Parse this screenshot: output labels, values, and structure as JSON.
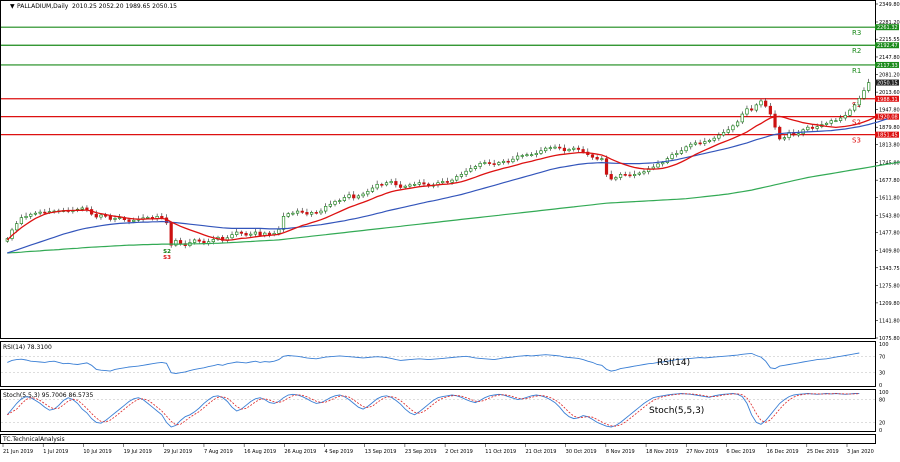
{
  "header": {
    "symbol": "PALLADIUM,Daily",
    "ohlc": "2010.25 2052.20 1989.65 2050.15"
  },
  "colors": {
    "up": "#0b7a0b",
    "down": "#cc1111",
    "resistance": "#1a8a1a",
    "support": "#dd1111",
    "ma_fast": "#dd1111",
    "ma_mid": "#3355bb",
    "ma_slow": "#33aa55",
    "rsi": "#3a7fd5",
    "stoch_main": "#3a7fd5",
    "stoch_signal": "#dd2222",
    "price_tag_bg": "#222222"
  },
  "chart_data": [
    {
      "type": "candlestick",
      "symbol": "PALLADIUM",
      "timeframe": "Daily",
      "x_labels": [
        "21 Jun 2019",
        "1 Jul 2019",
        "10 Jul 2019",
        "19 Jul 2019",
        "29 Jul 2019",
        "7 Aug 2019",
        "16 Aug 2019",
        "26 Aug 2019",
        "4 Sep 2019",
        "13 Sep 2019",
        "23 Sep 2019",
        "2 Oct 2019",
        "11 Oct 2019",
        "21 Oct 2019",
        "30 Oct 2019",
        "8 Nov 2019",
        "18 Nov 2019",
        "27 Nov 2019",
        "6 Dec 2019",
        "16 Dec 2019",
        "25 Dec 2019",
        "3 Jan 2020"
      ],
      "y_ticks": [
        "2349.80",
        "2281.20",
        "2215.55",
        "2147.80",
        "2081.20",
        "2013.60",
        "1947.80",
        "1879.80",
        "1813.80",
        "1745.80",
        "1677.80",
        "1611.80",
        "1543.80",
        "1477.80",
        "1409.80",
        "1343.75",
        "1275.80",
        "1209.80",
        "1141.80",
        "1075.80"
      ],
      "ylim": [
        1075.8,
        2349.8
      ],
      "levels": [
        {
          "name": "R3",
          "kind": "resistance",
          "value": 2261.32,
          "tag": "2261.32"
        },
        {
          "name": "R2",
          "kind": "resistance",
          "value": 2192.47,
          "tag": "2192.47"
        },
        {
          "name": "R1",
          "kind": "resistance",
          "value": 2117.33,
          "tag": "2117.33"
        },
        {
          "name": "S1",
          "kind": "support",
          "value": 1988.31,
          "tag": "1988.31"
        },
        {
          "name": "S2",
          "kind": "support",
          "value": 1920.08,
          "tag": "1920.08"
        },
        {
          "name": "S3",
          "kind": "support",
          "value": 1851.45,
          "tag": "1851.45"
        }
      ],
      "last_price": "2050.15",
      "pivot_marks": [
        "S2",
        "S3"
      ],
      "closes": [
        1455,
        1488,
        1512,
        1535,
        1540,
        1548,
        1552,
        1556,
        1555,
        1558,
        1560,
        1561,
        1562,
        1560,
        1562,
        1567,
        1572,
        1566,
        1548,
        1537,
        1545,
        1540,
        1528,
        1532,
        1535,
        1527,
        1520,
        1525,
        1530,
        1534,
        1536,
        1532,
        1540,
        1534,
        1515,
        1430,
        1448,
        1436,
        1428,
        1440,
        1450,
        1445,
        1436,
        1443,
        1452,
        1460,
        1448,
        1458,
        1470,
        1480,
        1475,
        1468,
        1472,
        1480,
        1468,
        1476,
        1470,
        1475,
        1490,
        1540,
        1550,
        1552,
        1560,
        1555,
        1548,
        1555,
        1553,
        1560,
        1578,
        1586,
        1597,
        1600,
        1612,
        1622,
        1610,
        1618,
        1625,
        1635,
        1648,
        1662,
        1660,
        1668,
        1673,
        1660,
        1650,
        1655,
        1660,
        1662,
        1668,
        1663,
        1655,
        1660,
        1668,
        1673,
        1670,
        1678,
        1692,
        1700,
        1712,
        1722,
        1730,
        1742,
        1745,
        1741,
        1738,
        1745,
        1750,
        1748,
        1758,
        1770,
        1772,
        1775,
        1775,
        1780,
        1790,
        1800,
        1802,
        1804,
        1800,
        1790,
        1795,
        1800,
        1795,
        1785,
        1775,
        1765,
        1758,
        1760,
        1700,
        1682,
        1688,
        1700,
        1698,
        1695,
        1700,
        1705,
        1710,
        1722,
        1728,
        1740,
        1745,
        1760,
        1775,
        1780,
        1790,
        1805,
        1815,
        1820,
        1818,
        1825,
        1830,
        1838,
        1850,
        1860,
        1870,
        1885,
        1900,
        1930,
        1950,
        1945,
        1965,
        1980,
        1960,
        1930,
        1880,
        1835,
        1840,
        1860,
        1850,
        1855,
        1870,
        1880,
        1875,
        1882,
        1890,
        1895,
        1905,
        1905,
        1915,
        1925,
        1945,
        1965,
        1990,
        2020,
        2050
      ],
      "ma_fast": [
        1450,
        1467,
        1482,
        1497,
        1509,
        1521,
        1532,
        1540,
        1548,
        1553,
        1556,
        1559,
        1561,
        1562,
        1562,
        1563,
        1563,
        1564,
        1560,
        1554,
        1550,
        1547,
        1543,
        1540,
        1538,
        1535,
        1532,
        1530,
        1529,
        1529,
        1530,
        1530,
        1531,
        1532,
        1529,
        1518,
        1510,
        1502,
        1495,
        1488,
        1482,
        1476,
        1469,
        1463,
        1458,
        1454,
        1450,
        1449,
        1450,
        1453,
        1456,
        1457,
        1459,
        1462,
        1464,
        1466,
        1467,
        1469,
        1471,
        1477,
        1484,
        1491,
        1498,
        1505,
        1510,
        1516,
        1521,
        1527,
        1534,
        1542,
        1550,
        1558,
        1566,
        1574,
        1580,
        1587,
        1593,
        1600,
        1607,
        1615,
        1621,
        1628,
        1634,
        1638,
        1641,
        1644,
        1647,
        1650,
        1653,
        1655,
        1656,
        1658,
        1660,
        1662,
        1663,
        1665,
        1668,
        1672,
        1677,
        1683,
        1689,
        1696,
        1702,
        1708,
        1713,
        1718,
        1723,
        1727,
        1732,
        1737,
        1742,
        1746,
        1750,
        1755,
        1759,
        1764,
        1768,
        1772,
        1775,
        1777,
        1779,
        1781,
        1783,
        1783,
        1782,
        1780,
        1777,
        1774,
        1767,
        1758,
        1750,
        1743,
        1737,
        1731,
        1726,
        1723,
        1721,
        1720,
        1720,
        1721,
        1723,
        1727,
        1733,
        1739,
        1747,
        1756,
        1766,
        1776,
        1784,
        1792,
        1800,
        1808,
        1816,
        1823,
        1830,
        1837,
        1845,
        1853,
        1862,
        1873,
        1885,
        1894,
        1905,
        1915,
        1920,
        1921,
        1917,
        1911,
        1906,
        1902,
        1897,
        1894,
        1891,
        1889,
        1886,
        1883,
        1881,
        1879,
        1881,
        1883,
        1886,
        1889,
        1894,
        1900,
        1907,
        1915,
        1924
      ],
      "ma_mid": [
        1400,
        1406,
        1412,
        1418,
        1424,
        1430,
        1436,
        1442,
        1448,
        1454,
        1460,
        1466,
        1472,
        1477,
        1482,
        1487,
        1491,
        1495,
        1498,
        1501,
        1504,
        1507,
        1509,
        1511,
        1513,
        1514,
        1515,
        1516,
        1517,
        1518,
        1518,
        1519,
        1519,
        1520,
        1519,
        1517,
        1516,
        1514,
        1512,
        1510,
        1508,
        1506,
        1504,
        1502,
        1500,
        1498,
        1496,
        1495,
        1494,
        1494,
        1494,
        1494,
        1494,
        1494,
        1494,
        1493,
        1492,
        1492,
        1492,
        1493,
        1494,
        1496,
        1498,
        1500,
        1502,
        1504,
        1506,
        1508,
        1511,
        1514,
        1517,
        1520,
        1523,
        1527,
        1530,
        1534,
        1538,
        1542,
        1546,
        1551,
        1555,
        1560,
        1564,
        1568,
        1572,
        1576,
        1580,
        1584,
        1588,
        1592,
        1596,
        1599,
        1603,
        1607,
        1611,
        1615,
        1619,
        1623,
        1628,
        1633,
        1638,
        1643,
        1648,
        1653,
        1658,
        1663,
        1668,
        1673,
        1678,
        1683,
        1688,
        1693,
        1698,
        1703,
        1708,
        1713,
        1718,
        1722,
        1726,
        1729,
        1732,
        1735,
        1738,
        1740,
        1742,
        1743,
        1744,
        1745,
        1744,
        1743,
        1742,
        1742,
        1741,
        1741,
        1741,
        1741,
        1742,
        1743,
        1744,
        1746,
        1748,
        1750,
        1753,
        1756,
        1760,
        1764,
        1768,
        1772,
        1776,
        1780,
        1784,
        1788,
        1792,
        1796,
        1800,
        1805,
        1810,
        1815,
        1820,
        1826,
        1832,
        1837,
        1842,
        1848,
        1852,
        1855,
        1857,
        1858,
        1859,
        1860,
        1861,
        1862,
        1863,
        1864,
        1865,
        1866,
        1867,
        1869,
        1871,
        1873,
        1876,
        1879,
        1882,
        1886,
        1890,
        1895,
        1900,
        1906,
        1912
      ],
      "ma_slow": [
        1400,
        1401,
        1402,
        1403,
        1405,
        1406,
        1407,
        1408,
        1410,
        1411,
        1412,
        1413,
        1415,
        1416,
        1417,
        1418,
        1420,
        1421,
        1422,
        1423,
        1424,
        1425,
        1426,
        1427,
        1428,
        1429,
        1430,
        1430,
        1431,
        1432,
        1432,
        1433,
        1433,
        1434,
        1434,
        1434,
        1434,
        1434,
        1434,
        1435,
        1435,
        1435,
        1436,
        1436,
        1437,
        1437,
        1438,
        1439,
        1440,
        1441,
        1442,
        1443,
        1444,
        1445,
        1446,
        1447,
        1448,
        1449,
        1450,
        1452,
        1454,
        1456,
        1458,
        1460,
        1462,
        1464,
        1466,
        1468,
        1470,
        1472,
        1474,
        1476,
        1478,
        1480,
        1482,
        1484,
        1486,
        1488,
        1490,
        1492,
        1494,
        1496,
        1498,
        1500,
        1502,
        1504,
        1506,
        1508,
        1510,
        1512,
        1514,
        1516,
        1518,
        1520,
        1522,
        1524,
        1526,
        1528,
        1530,
        1532,
        1534,
        1536,
        1538,
        1540,
        1542,
        1544,
        1546,
        1548,
        1550,
        1552,
        1554,
        1556,
        1558,
        1560,
        1562,
        1564,
        1566,
        1568,
        1570,
        1572,
        1574,
        1576,
        1578,
        1580,
        1582,
        1584,
        1586,
        1588,
        1590,
        1591,
        1592,
        1593,
        1594,
        1595,
        1596,
        1597,
        1598,
        1599,
        1600,
        1601,
        1602,
        1603,
        1604,
        1605,
        1606,
        1607,
        1609,
        1611,
        1613,
        1615,
        1617,
        1619,
        1621,
        1623,
        1625,
        1628,
        1631,
        1634,
        1637,
        1640,
        1644,
        1648,
        1652,
        1656,
        1660,
        1664,
        1668,
        1672,
        1676,
        1680,
        1684,
        1688,
        1691,
        1694,
        1697,
        1700,
        1703,
        1706,
        1709,
        1712,
        1715,
        1718,
        1721,
        1724,
        1727,
        1730,
        1733,
        1736,
        1739,
        1742,
        1745,
        1748,
        1751,
        1755
      ]
    },
    {
      "type": "line",
      "name": "RSI(14)",
      "header": "RSI(14) 78.3100",
      "label": "RSI(14)",
      "y_ticks": [
        "100",
        "70",
        "30",
        "0"
      ],
      "ylim": [
        0,
        100
      ],
      "levels": [
        70,
        30
      ],
      "values": [
        55,
        60,
        62,
        63,
        61,
        58,
        57,
        56,
        55,
        57,
        58,
        55,
        52,
        53,
        51,
        50,
        52,
        54,
        48,
        38,
        36,
        35,
        34,
        38,
        40,
        42,
        44,
        45,
        46,
        48,
        50,
        52,
        54,
        55,
        53,
        30,
        28,
        30,
        32,
        35,
        38,
        40,
        42,
        45,
        47,
        50,
        48,
        52,
        54,
        56,
        55,
        54,
        56,
        58,
        55,
        57,
        56,
        58,
        62,
        70,
        72,
        71,
        70,
        68,
        66,
        65,
        64,
        66,
        68,
        69,
        70,
        71,
        70,
        69,
        68,
        67,
        66,
        67,
        68,
        69,
        68,
        67,
        65,
        62,
        60,
        61,
        62,
        63,
        64,
        63,
        62,
        63,
        64,
        65,
        66,
        67,
        68,
        69,
        70,
        68,
        66,
        65,
        64,
        63,
        62,
        64,
        66,
        67,
        68,
        70,
        71,
        72,
        71,
        72,
        73,
        74,
        73,
        72,
        71,
        68,
        67,
        66,
        65,
        62,
        58,
        55,
        50,
        48,
        38,
        34,
        36,
        40,
        42,
        44,
        46,
        48,
        50,
        52,
        53,
        55,
        56,
        58,
        60,
        62,
        63,
        64,
        65,
        66,
        67,
        66,
        67,
        68,
        69,
        70,
        71,
        72,
        73,
        75,
        76,
        77,
        72,
        68,
        58,
        42,
        40,
        46,
        48,
        50,
        52,
        54,
        56,
        58,
        60,
        62,
        63,
        64,
        66,
        68,
        70,
        72,
        74,
        76,
        78
      ]
    },
    {
      "type": "line",
      "name": "Stoch(5,5,3)",
      "header": "Stoch(5,5,3) 95.7006 86.5735",
      "label": "Stoch(5,5,3)",
      "y_ticks": [
        "100",
        "80",
        "20",
        "0"
      ],
      "ylim": [
        0,
        100
      ],
      "levels": [
        80,
        20
      ],
      "main": [
        40,
        55,
        70,
        82,
        88,
        85,
        78,
        70,
        60,
        52,
        55,
        65,
        78,
        85,
        80,
        70,
        55,
        45,
        30,
        20,
        18,
        25,
        35,
        45,
        55,
        65,
        75,
        82,
        85,
        80,
        70,
        60,
        50,
        40,
        20,
        8,
        12,
        25,
        35,
        40,
        48,
        58,
        70,
        80,
        88,
        90,
        85,
        75,
        60,
        50,
        55,
        65,
        75,
        82,
        85,
        80,
        72,
        70,
        75,
        85,
        92,
        94,
        92,
        88,
        82,
        75,
        70,
        72,
        78,
        85,
        90,
        92,
        88,
        80,
        70,
        60,
        55,
        62,
        72,
        82,
        88,
        90,
        86,
        78,
        68,
        55,
        45,
        40,
        48,
        58,
        68,
        78,
        85,
        88,
        90,
        92,
        90,
        86,
        80,
        75,
        72,
        78,
        85,
        90,
        92,
        94,
        92,
        88,
        84,
        80,
        82,
        86,
        90,
        92,
        90,
        86,
        80,
        72,
        60,
        45,
        35,
        30,
        32,
        38,
        35,
        28,
        20,
        15,
        10,
        8,
        12,
        20,
        30,
        40,
        50,
        60,
        70,
        78,
        85,
        88,
        90,
        92,
        94,
        95,
        96,
        95,
        94,
        92,
        90,
        88,
        86,
        90,
        92,
        94,
        95,
        96,
        94,
        88,
        70,
        40,
        20,
        15,
        25,
        40,
        55,
        70,
        80,
        88,
        92,
        94,
        95,
        96,
        95,
        94,
        95,
        96,
        95,
        96,
        95,
        94,
        95,
        96,
        95.7
      ]
    }
  ]
}
